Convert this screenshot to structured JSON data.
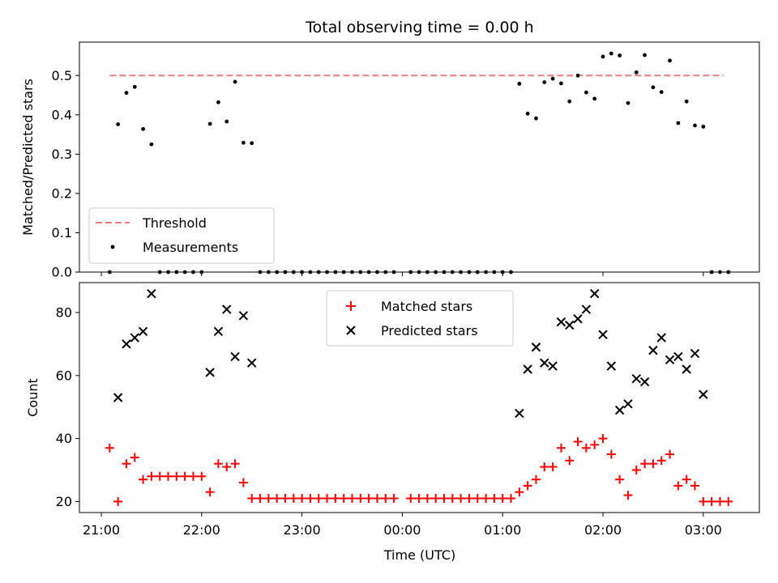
{
  "chart_data": {
    "title": "Total observing time = 0.00 h",
    "xlabel": "Time (UTC)",
    "x_tick_labels": [
      "21:00",
      "22:00",
      "23:00",
      "00:00",
      "01:00",
      "02:00",
      "03:00"
    ],
    "top": {
      "type": "scatter",
      "ylabel": "Matched/Predicted stars",
      "ylim": [
        0,
        0.585
      ],
      "y_ticks": [
        "0.0",
        "0.1",
        "0.2",
        "0.3",
        "0.4",
        "0.5"
      ],
      "legend_position": "lower-left",
      "threshold": {
        "name": "Threshold",
        "value": 0.5,
        "x_range": [
          "21:05",
          "03:12"
        ],
        "color": "#f47a7a"
      },
      "measurements": {
        "name": "Measurements",
        "color": "#000000",
        "points": [
          [
            "21:05",
            0.0
          ],
          [
            "21:10",
            0.376
          ],
          [
            "21:15",
            0.456
          ],
          [
            "21:20",
            0.471
          ],
          [
            "21:25",
            0.364
          ],
          [
            "21:30",
            0.325
          ],
          [
            "21:35",
            0.0
          ],
          [
            "21:40",
            0.0
          ],
          [
            "21:45",
            0.0
          ],
          [
            "21:50",
            0.0
          ],
          [
            "21:55",
            0.0
          ],
          [
            "22:00",
            0.0
          ],
          [
            "22:05",
            0.377
          ],
          [
            "22:10",
            0.432
          ],
          [
            "22:15",
            0.383
          ],
          [
            "22:20",
            0.484
          ],
          [
            "22:25",
            0.329
          ],
          [
            "22:30",
            0.328
          ],
          [
            "22:35",
            0.0
          ],
          [
            "22:40",
            0.0
          ],
          [
            "22:45",
            0.0
          ],
          [
            "22:50",
            0.0
          ],
          [
            "22:55",
            0.0
          ],
          [
            "23:00",
            0.0
          ],
          [
            "23:05",
            0.0
          ],
          [
            "23:10",
            0.0
          ],
          [
            "23:15",
            0.0
          ],
          [
            "23:20",
            0.0
          ],
          [
            "23:25",
            0.0
          ],
          [
            "23:30",
            0.0
          ],
          [
            "23:35",
            0.0
          ],
          [
            "23:40",
            0.0
          ],
          [
            "23:45",
            0.0
          ],
          [
            "23:50",
            0.0
          ],
          [
            "23:55",
            0.0
          ],
          [
            "00:05",
            0.0
          ],
          [
            "00:10",
            0.0
          ],
          [
            "00:15",
            0.0
          ],
          [
            "00:20",
            0.0
          ],
          [
            "00:25",
            0.0
          ],
          [
            "00:30",
            0.0
          ],
          [
            "00:35",
            0.0
          ],
          [
            "00:40",
            0.0
          ],
          [
            "00:45",
            0.0
          ],
          [
            "00:50",
            0.0
          ],
          [
            "00:55",
            0.0
          ],
          [
            "01:00",
            0.0
          ],
          [
            "01:05",
            0.0
          ],
          [
            "01:10",
            0.479
          ],
          [
            "01:15",
            0.403
          ],
          [
            "01:20",
            0.391
          ],
          [
            "01:25",
            0.483
          ],
          [
            "01:30",
            0.492
          ],
          [
            "01:35",
            0.48
          ],
          [
            "01:40",
            0.434
          ],
          [
            "01:45",
            0.5
          ],
          [
            "01:50",
            0.457
          ],
          [
            "01:55",
            0.441
          ],
          [
            "02:00",
            0.548
          ],
          [
            "02:05",
            0.556
          ],
          [
            "02:10",
            0.551
          ],
          [
            "02:15",
            0.43
          ],
          [
            "02:20",
            0.508
          ],
          [
            "02:25",
            0.552
          ],
          [
            "02:30",
            0.47
          ],
          [
            "02:35",
            0.458
          ],
          [
            "02:40",
            0.538
          ],
          [
            "02:45",
            0.379
          ],
          [
            "02:50",
            0.434
          ],
          [
            "02:55",
            0.373
          ],
          [
            "03:00",
            0.37
          ],
          [
            "03:05",
            0.0
          ],
          [
            "03:10",
            0.0
          ],
          [
            "03:15",
            0.0
          ]
        ]
      }
    },
    "bottom": {
      "type": "scatter",
      "ylabel": "Count",
      "ylim": [
        16.5,
        89.5
      ],
      "y_ticks": [
        "20",
        "40",
        "60",
        "80"
      ],
      "legend_position": "upper-center",
      "matched": {
        "name": "Matched stars",
        "color": "#ff0000",
        "points": [
          [
            "21:05",
            37
          ],
          [
            "21:10",
            20
          ],
          [
            "21:15",
            32
          ],
          [
            "21:20",
            34
          ],
          [
            "21:25",
            27
          ],
          [
            "21:30",
            28
          ],
          [
            "21:35",
            28
          ],
          [
            "21:40",
            28
          ],
          [
            "21:45",
            28
          ],
          [
            "21:50",
            28
          ],
          [
            "21:55",
            28
          ],
          [
            "22:00",
            28
          ],
          [
            "22:05",
            23
          ],
          [
            "22:10",
            32
          ],
          [
            "22:15",
            31
          ],
          [
            "22:20",
            32
          ],
          [
            "22:25",
            26
          ],
          [
            "22:30",
            21
          ],
          [
            "22:35",
            21
          ],
          [
            "22:40",
            21
          ],
          [
            "22:45",
            21
          ],
          [
            "22:50",
            21
          ],
          [
            "22:55",
            21
          ],
          [
            "23:00",
            21
          ],
          [
            "23:05",
            21
          ],
          [
            "23:10",
            21
          ],
          [
            "23:15",
            21
          ],
          [
            "23:20",
            21
          ],
          [
            "23:25",
            21
          ],
          [
            "23:30",
            21
          ],
          [
            "23:35",
            21
          ],
          [
            "23:40",
            21
          ],
          [
            "23:45",
            21
          ],
          [
            "23:50",
            21
          ],
          [
            "23:55",
            21
          ],
          [
            "00:05",
            21
          ],
          [
            "00:10",
            21
          ],
          [
            "00:15",
            21
          ],
          [
            "00:20",
            21
          ],
          [
            "00:25",
            21
          ],
          [
            "00:30",
            21
          ],
          [
            "00:35",
            21
          ],
          [
            "00:40",
            21
          ],
          [
            "00:45",
            21
          ],
          [
            "00:50",
            21
          ],
          [
            "00:55",
            21
          ],
          [
            "01:00",
            21
          ],
          [
            "01:05",
            21
          ],
          [
            "01:10",
            23
          ],
          [
            "01:15",
            25
          ],
          [
            "01:20",
            27
          ],
          [
            "01:25",
            31
          ],
          [
            "01:30",
            31
          ],
          [
            "01:35",
            37
          ],
          [
            "01:40",
            33
          ],
          [
            "01:45",
            39
          ],
          [
            "01:50",
            37
          ],
          [
            "01:55",
            38
          ],
          [
            "02:00",
            40
          ],
          [
            "02:05",
            35
          ],
          [
            "02:10",
            27
          ],
          [
            "02:15",
            22
          ],
          [
            "02:20",
            30
          ],
          [
            "02:25",
            32
          ],
          [
            "02:30",
            32
          ],
          [
            "02:35",
            33
          ],
          [
            "02:40",
            35
          ],
          [
            "02:45",
            25
          ],
          [
            "02:50",
            27
          ],
          [
            "02:55",
            25
          ],
          [
            "03:00",
            20
          ],
          [
            "03:05",
            20
          ],
          [
            "03:10",
            20
          ],
          [
            "03:15",
            20
          ]
        ]
      },
      "predicted": {
        "name": "Predicted stars",
        "color": "#000000",
        "points": [
          [
            "21:10",
            53
          ],
          [
            "21:15",
            70
          ],
          [
            "21:20",
            72
          ],
          [
            "21:25",
            74
          ],
          [
            "21:30",
            86
          ],
          [
            "22:05",
            61
          ],
          [
            "22:10",
            74
          ],
          [
            "22:15",
            81
          ],
          [
            "22:20",
            66
          ],
          [
            "22:25",
            79
          ],
          [
            "22:30",
            64
          ],
          [
            "01:10",
            48
          ],
          [
            "01:15",
            62
          ],
          [
            "01:20",
            69
          ],
          [
            "01:25",
            64
          ],
          [
            "01:30",
            63
          ],
          [
            "01:35",
            77
          ],
          [
            "01:40",
            76
          ],
          [
            "01:45",
            78
          ],
          [
            "01:50",
            81
          ],
          [
            "01:55",
            86
          ],
          [
            "02:00",
            73
          ],
          [
            "02:05",
            63
          ],
          [
            "02:10",
            49
          ],
          [
            "02:15",
            51
          ],
          [
            "02:20",
            59
          ],
          [
            "02:25",
            58
          ],
          [
            "02:30",
            68
          ],
          [
            "02:35",
            72
          ],
          [
            "02:40",
            65
          ],
          [
            "02:45",
            66
          ],
          [
            "02:50",
            62
          ],
          [
            "02:55",
            67
          ],
          [
            "03:00",
            54
          ]
        ]
      }
    }
  }
}
